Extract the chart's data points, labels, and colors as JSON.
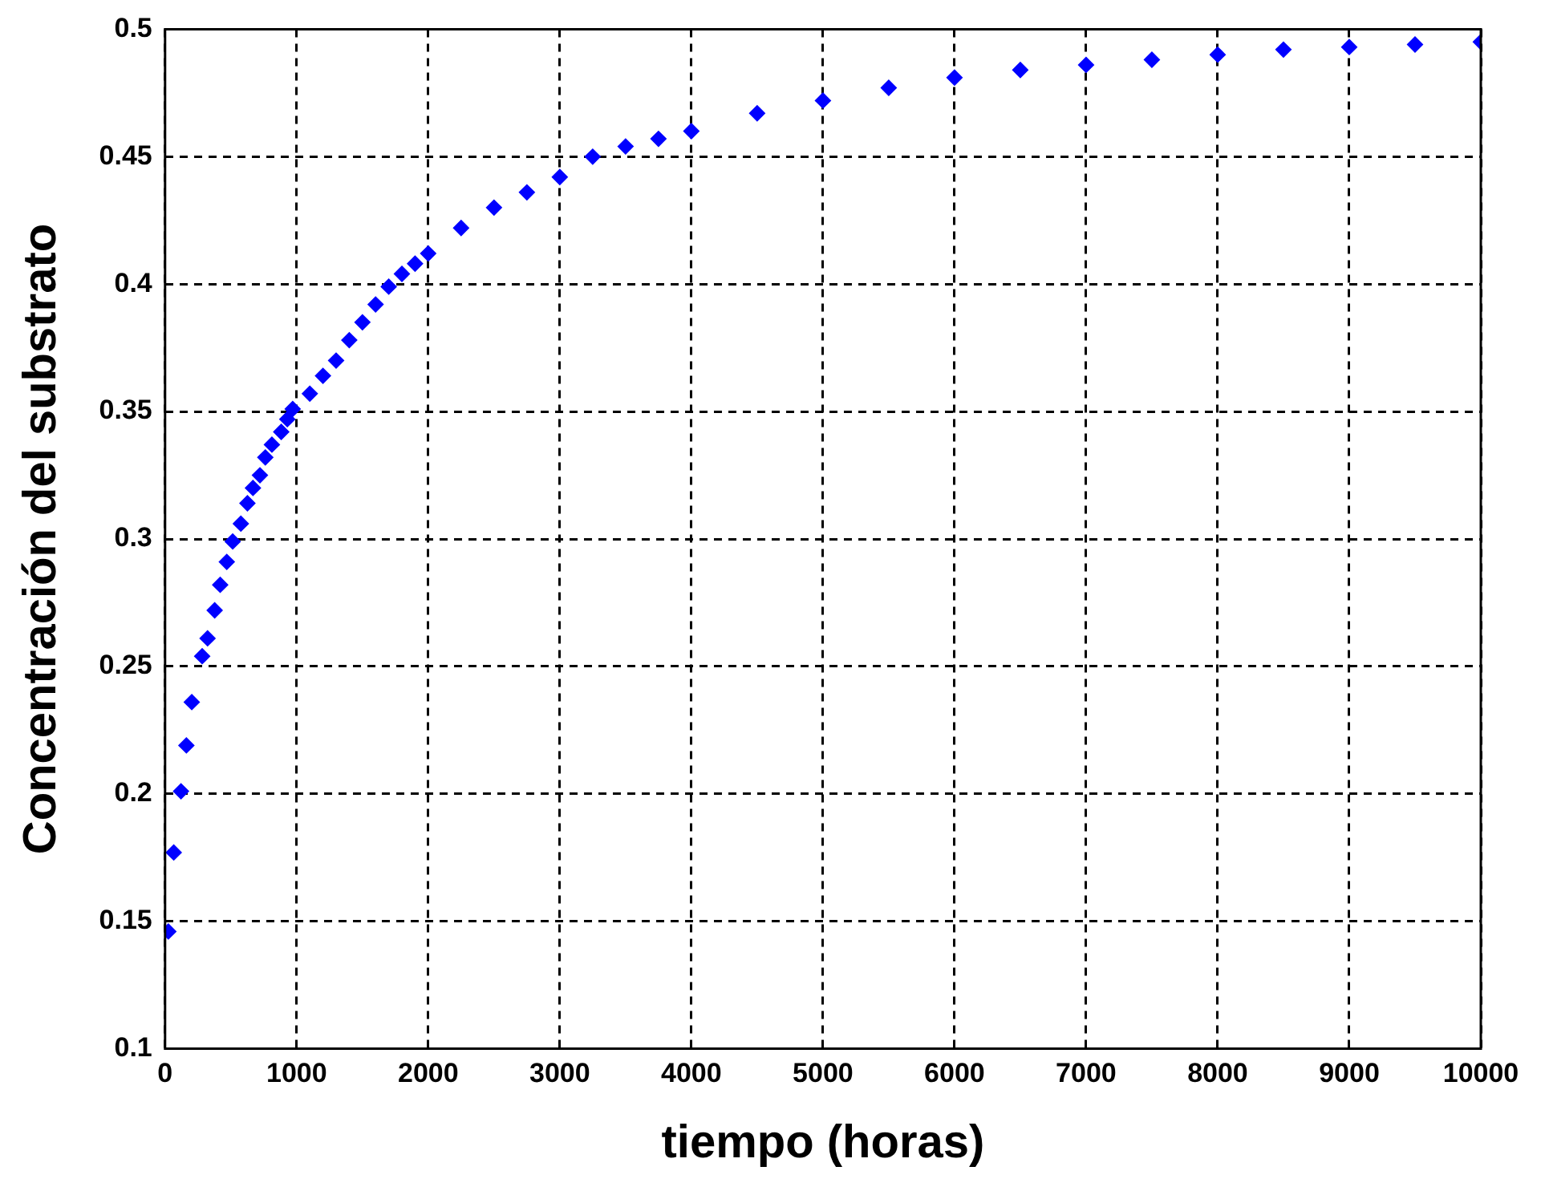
{
  "chart_data": {
    "type": "scatter",
    "xlabel": "tiempo (horas)",
    "ylabel": "Concentración del substrato",
    "x": [
      25,
      66,
      121,
      162,
      203,
      282,
      323,
      377,
      419,
      469,
      514,
      576,
      626,
      668,
      721,
      762,
      812,
      883,
      929,
      970,
      1100,
      1200,
      1300,
      1400,
      1500,
      1600,
      1700,
      1800,
      1900,
      2000,
      2250,
      2500,
      2750,
      3000,
      3250,
      3500,
      3750,
      4000,
      4500,
      5000,
      5500,
      6000,
      6500,
      7000,
      7500,
      8000,
      8500,
      9000,
      9500,
      10000
    ],
    "series": [
      {
        "color": "#0000ff",
        "values": [
          0.146,
          0.177,
          0.201,
          0.219,
          0.236,
          0.254,
          0.261,
          0.272,
          0.282,
          0.291,
          0.299,
          0.306,
          0.314,
          0.32,
          0.325,
          0.332,
          0.337,
          0.342,
          0.347,
          0.351,
          0.357,
          0.364,
          0.37,
          0.378,
          0.385,
          0.392,
          0.399,
          0.404,
          0.408,
          0.412,
          0.422,
          0.43,
          0.436,
          0.442,
          0.45,
          0.454,
          0.457,
          0.46,
          0.467,
          0.472,
          0.477,
          0.481,
          0.484,
          0.486,
          0.488,
          0.49,
          0.492,
          0.493,
          0.494,
          0.495
        ]
      }
    ],
    "xlim": [
      0,
      10000
    ],
    "xticks": [
      0,
      1000,
      2000,
      3000,
      4000,
      5000,
      6000,
      7000,
      8000,
      9000,
      10000
    ],
    "ylim": [
      0.1,
      0.5
    ],
    "yticks": [
      0.1,
      0.15,
      0.2,
      0.25,
      0.3,
      0.35,
      0.4,
      0.45,
      0.5
    ],
    "grid": true,
    "marker": "diamond",
    "legend": false
  }
}
